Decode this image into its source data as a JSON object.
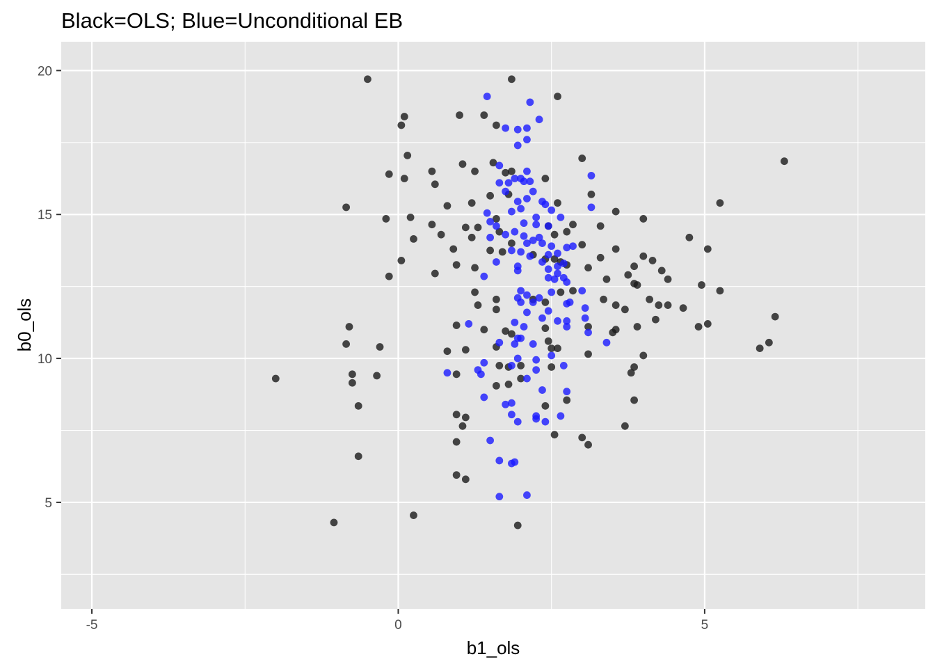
{
  "chart_data": {
    "type": "scatter",
    "title": "Black=OLS; Blue=Unconditional EB",
    "xlabel": "b1_ols",
    "ylabel": "b0_ols",
    "xlim": [
      -5.5,
      8.6
    ],
    "ylim": [
      1.3,
      21.0
    ],
    "x_ticks": [
      -5,
      0,
      5
    ],
    "y_ticks": [
      5,
      10,
      15,
      20
    ],
    "x_tick_labels": [
      "-5",
      "0",
      "5"
    ],
    "y_tick_labels": [
      "5",
      "10",
      "15",
      "20"
    ],
    "grid": true,
    "colors": {
      "panel": "#e5e5e5",
      "grid": "#ffffff",
      "ols": "#1a1a1a",
      "eb": "#1a1aff"
    },
    "series": [
      {
        "color": "#1a1a1a",
        "points": [
          [
            -0.5,
            19.7
          ],
          [
            1.85,
            19.7
          ],
          [
            2.6,
            19.1
          ],
          [
            0.1,
            18.4
          ],
          [
            0.05,
            18.1
          ],
          [
            1.0,
            18.45
          ],
          [
            1.4,
            18.45
          ],
          [
            1.6,
            18.1
          ],
          [
            0.15,
            17.05
          ],
          [
            3.0,
            16.95
          ],
          [
            -0.15,
            16.4
          ],
          [
            0.1,
            16.25
          ],
          [
            0.55,
            16.5
          ],
          [
            0.6,
            16.05
          ],
          [
            1.05,
            16.75
          ],
          [
            1.25,
            16.5
          ],
          [
            1.55,
            16.8
          ],
          [
            1.75,
            16.45
          ],
          [
            1.85,
            16.5
          ],
          [
            2.4,
            16.25
          ],
          [
            6.3,
            16.85
          ],
          [
            -0.85,
            15.25
          ],
          [
            -0.2,
            14.85
          ],
          [
            0.2,
            14.9
          ],
          [
            0.8,
            15.3
          ],
          [
            1.2,
            15.4
          ],
          [
            1.5,
            15.65
          ],
          [
            1.8,
            15.7
          ],
          [
            2.6,
            15.4
          ],
          [
            3.15,
            15.7
          ],
          [
            3.55,
            15.1
          ],
          [
            4.0,
            14.85
          ],
          [
            5.25,
            15.4
          ],
          [
            0.55,
            14.65
          ],
          [
            0.7,
            14.3
          ],
          [
            0.25,
            14.15
          ],
          [
            1.1,
            14.55
          ],
          [
            1.3,
            14.55
          ],
          [
            1.6,
            14.85
          ],
          [
            1.65,
            14.4
          ],
          [
            2.45,
            14.6
          ],
          [
            2.55,
            14.3
          ],
          [
            2.75,
            14.4
          ],
          [
            2.85,
            14.65
          ],
          [
            3.3,
            14.6
          ],
          [
            4.75,
            14.2
          ],
          [
            0.05,
            13.4
          ],
          [
            0.6,
            12.95
          ],
          [
            0.9,
            13.8
          ],
          [
            1.2,
            14.2
          ],
          [
            1.5,
            13.75
          ],
          [
            1.7,
            13.7
          ],
          [
            1.85,
            14.0
          ],
          [
            2.2,
            13.6
          ],
          [
            2.4,
            13.45
          ],
          [
            2.55,
            13.45
          ],
          [
            2.65,
            13.35
          ],
          [
            2.75,
            13.25
          ],
          [
            3.0,
            13.95
          ],
          [
            3.1,
            13.15
          ],
          [
            3.3,
            13.5
          ],
          [
            3.4,
            12.75
          ],
          [
            3.55,
            13.8
          ],
          [
            3.75,
            12.9
          ],
          [
            3.85,
            13.2
          ],
          [
            4.0,
            13.55
          ],
          [
            4.15,
            13.4
          ],
          [
            4.3,
            13.05
          ],
          [
            4.4,
            12.75
          ],
          [
            5.05,
            13.8
          ],
          [
            -0.15,
            12.85
          ],
          [
            0.95,
            13.25
          ],
          [
            1.25,
            13.15
          ],
          [
            1.25,
            12.3
          ],
          [
            1.3,
            11.85
          ],
          [
            1.6,
            12.05
          ],
          [
            1.6,
            11.7
          ],
          [
            2.2,
            12.05
          ],
          [
            2.4,
            11.95
          ],
          [
            2.65,
            12.3
          ],
          [
            2.85,
            12.35
          ],
          [
            3.1,
            11.1
          ],
          [
            3.35,
            12.05
          ],
          [
            3.55,
            11.85
          ],
          [
            3.7,
            11.7
          ],
          [
            3.85,
            12.6
          ],
          [
            3.9,
            12.55
          ],
          [
            4.1,
            12.05
          ],
          [
            4.25,
            11.85
          ],
          [
            4.4,
            11.85
          ],
          [
            4.95,
            12.55
          ],
          [
            5.25,
            12.35
          ],
          [
            4.65,
            11.75
          ],
          [
            4.2,
            11.35
          ],
          [
            3.9,
            11.1
          ],
          [
            3.55,
            11.0
          ],
          [
            3.5,
            10.9
          ],
          [
            4.9,
            11.1
          ],
          [
            5.05,
            11.2
          ],
          [
            6.15,
            11.45
          ],
          [
            -0.8,
            11.1
          ],
          [
            0.95,
            11.15
          ],
          [
            1.4,
            11.0
          ],
          [
            1.75,
            10.95
          ],
          [
            2.4,
            11.05
          ],
          [
            2.45,
            10.6
          ],
          [
            3.1,
            10.15
          ],
          [
            4.0,
            10.1
          ],
          [
            5.9,
            10.35
          ],
          [
            6.05,
            10.55
          ],
          [
            -0.85,
            10.5
          ],
          [
            -0.3,
            10.4
          ],
          [
            0.8,
            10.25
          ],
          [
            1.1,
            10.3
          ],
          [
            1.6,
            10.4
          ],
          [
            1.85,
            10.85
          ],
          [
            2.5,
            10.35
          ],
          [
            2.6,
            10.35
          ],
          [
            1.65,
            9.75
          ],
          [
            1.8,
            9.7
          ],
          [
            2.0,
            9.75
          ],
          [
            2.5,
            9.7
          ],
          [
            3.85,
            9.7
          ],
          [
            3.8,
            9.5
          ],
          [
            -0.75,
            9.45
          ],
          [
            -0.35,
            9.4
          ],
          [
            -2.0,
            9.3
          ],
          [
            -0.75,
            9.15
          ],
          [
            0.95,
            9.45
          ],
          [
            1.6,
            9.05
          ],
          [
            1.8,
            9.1
          ],
          [
            2.0,
            9.3
          ],
          [
            2.75,
            8.55
          ],
          [
            3.85,
            8.55
          ],
          [
            2.4,
            8.35
          ],
          [
            -0.65,
            8.35
          ],
          [
            0.95,
            8.05
          ],
          [
            1.1,
            7.95
          ],
          [
            1.05,
            7.65
          ],
          [
            0.95,
            7.1
          ],
          [
            2.55,
            7.35
          ],
          [
            3.0,
            7.25
          ],
          [
            3.1,
            7.0
          ],
          [
            3.7,
            7.65
          ],
          [
            -0.65,
            6.6
          ],
          [
            0.95,
            5.95
          ],
          [
            1.1,
            5.8
          ],
          [
            -1.05,
            4.3
          ],
          [
            0.25,
            4.55
          ],
          [
            1.95,
            4.2
          ]
        ]
      },
      {
        "color": "#1a1aff",
        "points": [
          [
            1.45,
            19.1
          ],
          [
            2.15,
            18.9
          ],
          [
            2.3,
            18.3
          ],
          [
            1.75,
            18.0
          ],
          [
            1.95,
            17.95
          ],
          [
            2.1,
            18.0
          ],
          [
            1.95,
            17.4
          ],
          [
            2.1,
            17.6
          ],
          [
            1.65,
            16.7
          ],
          [
            2.1,
            16.5
          ],
          [
            1.9,
            16.25
          ],
          [
            2.15,
            16.15
          ],
          [
            1.65,
            16.1
          ],
          [
            1.8,
            16.1
          ],
          [
            2.0,
            16.25
          ],
          [
            2.05,
            16.15
          ],
          [
            3.15,
            16.35
          ],
          [
            1.75,
            15.8
          ],
          [
            2.2,
            15.8
          ],
          [
            1.95,
            15.45
          ],
          [
            2.1,
            15.55
          ],
          [
            2.35,
            15.45
          ],
          [
            2.4,
            15.35
          ],
          [
            2.5,
            15.15
          ],
          [
            3.15,
            15.25
          ],
          [
            1.45,
            15.05
          ],
          [
            1.85,
            15.1
          ],
          [
            2.0,
            15.2
          ],
          [
            2.25,
            14.9
          ],
          [
            2.65,
            14.9
          ],
          [
            1.5,
            14.75
          ],
          [
            1.6,
            14.6
          ],
          [
            2.05,
            14.7
          ],
          [
            2.25,
            14.65
          ],
          [
            2.45,
            14.6
          ],
          [
            1.5,
            14.2
          ],
          [
            1.75,
            14.3
          ],
          [
            1.9,
            14.4
          ],
          [
            2.05,
            14.25
          ],
          [
            2.2,
            14.1
          ],
          [
            2.3,
            14.2
          ],
          [
            2.35,
            14.0
          ],
          [
            2.5,
            13.9
          ],
          [
            1.85,
            13.75
          ],
          [
            2.0,
            13.7
          ],
          [
            2.1,
            14.0
          ],
          [
            2.45,
            13.6
          ],
          [
            2.6,
            13.65
          ],
          [
            2.75,
            13.85
          ],
          [
            2.85,
            13.9
          ],
          [
            1.6,
            13.35
          ],
          [
            2.15,
            13.55
          ],
          [
            2.35,
            13.35
          ],
          [
            2.45,
            13.1
          ],
          [
            2.6,
            13.2
          ],
          [
            2.7,
            13.3
          ],
          [
            1.4,
            12.85
          ],
          [
            1.95,
            13.2
          ],
          [
            1.95,
            13.05
          ],
          [
            2.45,
            12.8
          ],
          [
            2.55,
            12.75
          ],
          [
            2.6,
            12.95
          ],
          [
            2.7,
            12.8
          ],
          [
            2.75,
            12.65
          ],
          [
            2.1,
            12.2
          ],
          [
            2.0,
            12.35
          ],
          [
            2.3,
            12.1
          ],
          [
            2.5,
            12.3
          ],
          [
            3.0,
            12.35
          ],
          [
            1.95,
            12.1
          ],
          [
            2.0,
            11.95
          ],
          [
            2.2,
            11.95
          ],
          [
            2.75,
            11.9
          ],
          [
            2.8,
            11.95
          ],
          [
            3.05,
            11.75
          ],
          [
            2.1,
            11.6
          ],
          [
            2.45,
            11.65
          ],
          [
            2.35,
            11.4
          ],
          [
            2.6,
            11.3
          ],
          [
            2.75,
            11.3
          ],
          [
            3.05,
            11.4
          ],
          [
            1.15,
            11.2
          ],
          [
            1.9,
            11.25
          ],
          [
            2.05,
            11.1
          ],
          [
            2.75,
            11.1
          ],
          [
            3.1,
            10.9
          ],
          [
            1.95,
            10.7
          ],
          [
            2.0,
            10.7
          ],
          [
            1.65,
            10.55
          ],
          [
            1.9,
            10.5
          ],
          [
            2.2,
            10.5
          ],
          [
            2.5,
            10.1
          ],
          [
            3.4,
            10.55
          ],
          [
            1.95,
            10.0
          ],
          [
            2.25,
            9.95
          ],
          [
            1.4,
            9.85
          ],
          [
            1.85,
            9.75
          ],
          [
            2.25,
            9.6
          ],
          [
            2.7,
            9.75
          ],
          [
            0.8,
            9.5
          ],
          [
            1.3,
            9.6
          ],
          [
            1.35,
            9.45
          ],
          [
            2.1,
            9.3
          ],
          [
            1.4,
            8.65
          ],
          [
            2.35,
            8.9
          ],
          [
            2.75,
            8.85
          ],
          [
            1.75,
            8.4
          ],
          [
            1.85,
            8.45
          ],
          [
            1.85,
            8.05
          ],
          [
            2.25,
            8.0
          ],
          [
            2.25,
            7.9
          ],
          [
            1.95,
            7.8
          ],
          [
            2.4,
            7.8
          ],
          [
            2.65,
            8.0
          ],
          [
            1.5,
            7.15
          ],
          [
            1.65,
            6.45
          ],
          [
            1.85,
            6.35
          ],
          [
            1.9,
            6.4
          ],
          [
            1.65,
            5.2
          ],
          [
            2.1,
            5.25
          ]
        ]
      }
    ]
  }
}
